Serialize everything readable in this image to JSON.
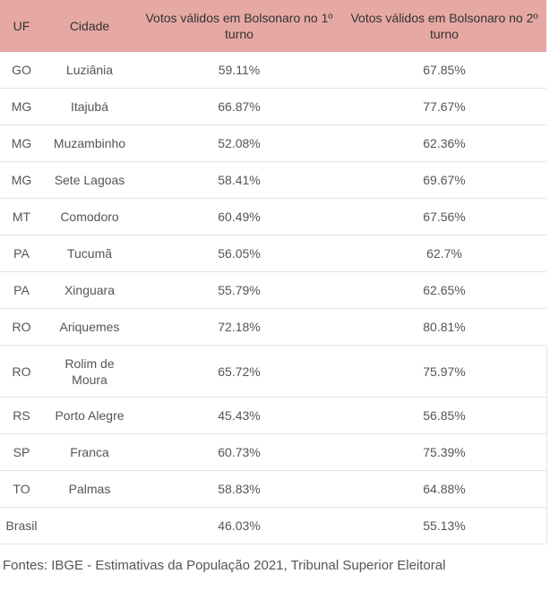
{
  "table": {
    "headers": {
      "uf": "UF",
      "city": "Cidade",
      "votes_round1": "Votos válidos em Bolsonaro no 1º turno",
      "votes_round2": "Votos válidos em Bolsonaro no 2º turno"
    },
    "rows": [
      {
        "uf": "GO",
        "city": "Luziânia",
        "r1": "59.11%",
        "r2": "67.85%"
      },
      {
        "uf": "MG",
        "city": "Itajubá",
        "r1": "66.87%",
        "r2": "77.67%"
      },
      {
        "uf": "MG",
        "city": "Muzambinho",
        "r1": "52.08%",
        "r2": "62.36%"
      },
      {
        "uf": "MG",
        "city": "Sete Lagoas",
        "r1": "58.41%",
        "r2": "69.67%"
      },
      {
        "uf": "MT",
        "city": "Comodoro",
        "r1": "60.49%",
        "r2": "67.56%"
      },
      {
        "uf": "PA",
        "city": "Tucumã",
        "r1": "56.05%",
        "r2": "62.7%"
      },
      {
        "uf": "PA",
        "city": "Xinguara",
        "r1": "55.79%",
        "r2": "62.65%"
      },
      {
        "uf": "RO",
        "city": "Ariquemes",
        "r1": "72.18%",
        "r2": "80.81%"
      },
      {
        "uf": "RO",
        "city": "Rolim de Moura",
        "r1": "65.72%",
        "r2": "75.97%"
      },
      {
        "uf": "RS",
        "city": "Porto Alegre",
        "r1": "45.43%",
        "r2": "56.85%"
      },
      {
        "uf": "SP",
        "city": "Franca",
        "r1": "60.73%",
        "r2": "75.39%"
      },
      {
        "uf": "TO",
        "city": "Palmas",
        "r1": "58.83%",
        "r2": "64.88%"
      },
      {
        "uf": "Brasil",
        "city": "",
        "r1": "46.03%",
        "r2": "55.13%"
      }
    ]
  },
  "source": "Fontes: IBGE - Estimativas da População 2021, Tribunal Superior Eleitoral",
  "colors": {
    "header_background": "#e6a8a3",
    "text": "#555555",
    "row_border": "#e4e4e4"
  }
}
